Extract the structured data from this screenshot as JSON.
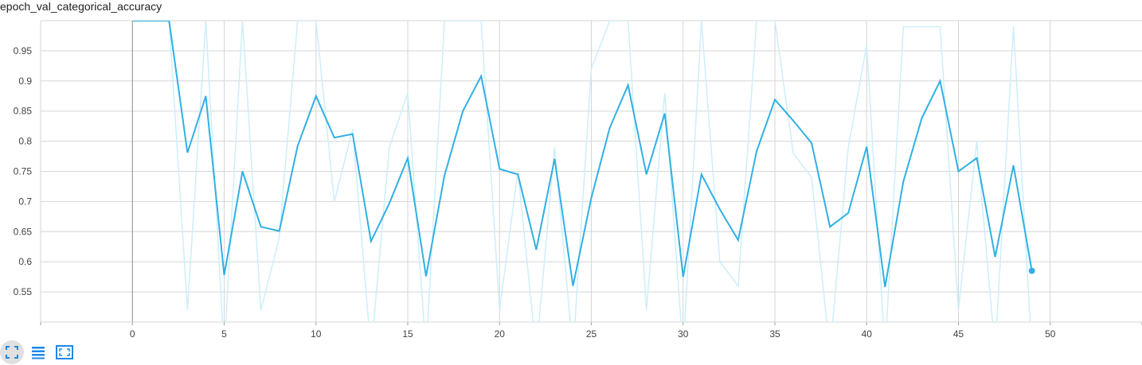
{
  "title": "epoch_val_categorical_accuracy",
  "colors": {
    "series": "#31b0e3",
    "raw_series": "#cdeef9",
    "grid": "#d6d6d6",
    "zero_axis": "#8a8a8a",
    "toolbar_icon": "#1e88e5"
  },
  "toolbar": {
    "buttons": [
      {
        "icon": "fit-domain-icon",
        "active": true
      },
      {
        "icon": "data-table-icon",
        "active": false
      },
      {
        "icon": "toggle-zoom-icon",
        "active": false
      }
    ]
  },
  "chart_data": {
    "type": "line",
    "title": "epoch_val_categorical_accuracy",
    "xlim": [
      -5,
      55
    ],
    "ylim": [
      0.5,
      1.0
    ],
    "x_ticks": [
      0,
      5,
      10,
      15,
      20,
      25,
      30,
      35,
      40,
      45,
      50
    ],
    "y_ticks": [
      0.55,
      0.6,
      0.65,
      0.7,
      0.75,
      0.8,
      0.85,
      0.9,
      0.95
    ],
    "grid": true,
    "legend": "none",
    "series": [
      {
        "role": "raw",
        "x": [
          0,
          1,
          2,
          3,
          4,
          5,
          6,
          7,
          8,
          9,
          10,
          11,
          12,
          13,
          14,
          15,
          16,
          17,
          18,
          19,
          20,
          21,
          22,
          23,
          24,
          25,
          26,
          27,
          28,
          29,
          30,
          31,
          32,
          33,
          34,
          35,
          36,
          37,
          38,
          39,
          40,
          41,
          42,
          43,
          44,
          45,
          46,
          47,
          48,
          49
        ],
        "values": [
          1.0,
          1.0,
          1.0,
          0.52,
          1.0,
          0.45,
          1.0,
          0.52,
          0.64,
          1.0,
          1.0,
          0.7,
          0.82,
          0.45,
          0.79,
          0.88,
          0.45,
          1.0,
          1.0,
          1.0,
          0.52,
          0.75,
          0.45,
          0.79,
          0.45,
          0.92,
          1.0,
          1.0,
          0.52,
          0.88,
          0.45,
          1.0,
          0.6,
          0.56,
          1.0,
          1.0,
          0.78,
          0.74,
          0.45,
          0.79,
          0.96,
          0.45,
          0.99,
          0.99,
          0.99,
          0.52,
          0.8,
          0.45,
          0.99,
          0.45
        ]
      },
      {
        "role": "smoothed",
        "x": [
          0,
          1,
          2,
          3,
          4,
          5,
          6,
          7,
          8,
          9,
          10,
          11,
          12,
          13,
          14,
          15,
          16,
          17,
          18,
          19,
          20,
          21,
          22,
          23,
          24,
          25,
          26,
          27,
          28,
          29,
          30,
          31,
          32,
          33,
          34,
          35,
          36,
          37,
          38,
          39,
          40,
          41,
          42,
          43,
          44,
          45,
          46,
          47,
          48,
          49
        ],
        "values": [
          1.0,
          1.0,
          1.0,
          0.781,
          0.875,
          0.578,
          0.75,
          0.658,
          0.651,
          0.792,
          0.875,
          0.806,
          0.812,
          0.634,
          0.697,
          0.772,
          0.576,
          0.743,
          0.85,
          0.908,
          0.754,
          0.745,
          0.62,
          0.771,
          0.56,
          0.706,
          0.822,
          0.893,
          0.745,
          0.846,
          0.575,
          0.745,
          0.687,
          0.636,
          0.783,
          0.869,
          0.834,
          0.797,
          0.658,
          0.681,
          0.791,
          0.558,
          0.733,
          0.838,
          0.9,
          0.75,
          0.772,
          0.608,
          0.76,
          0.585
        ]
      }
    ]
  }
}
